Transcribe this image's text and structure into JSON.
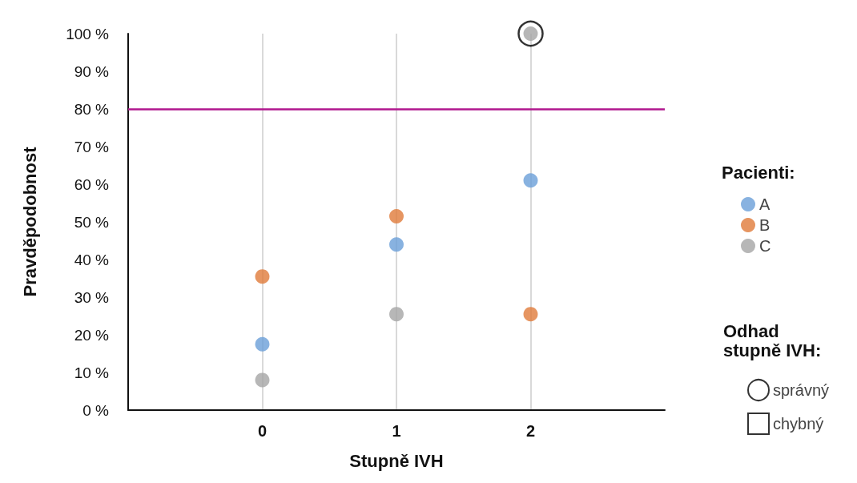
{
  "chart_data": {
    "type": "scatter",
    "xlabel": "Stupně IVH",
    "ylabel": "Pravděpodobnost",
    "legend_title": "Pacienti:",
    "annotations": [
      "Odhad\nstupně IVH:"
    ],
    "xlim": [
      -1,
      3
    ],
    "xticks": [
      0,
      1,
      2
    ],
    "ylim": [
      0,
      100
    ],
    "yticks": [
      {
        "value": 0,
        "label": "0 %"
      },
      {
        "value": 10,
        "label": "10 %"
      },
      {
        "value": 20,
        "label": "20 %"
      },
      {
        "value": 30,
        "label": "30 %"
      },
      {
        "value": 40,
        "label": "40 %"
      },
      {
        "value": 50,
        "label": "50 %"
      },
      {
        "value": 60,
        "label": "60 %"
      },
      {
        "value": 70,
        "label": "70 %"
      },
      {
        "value": 80,
        "label": "80 %"
      },
      {
        "value": 90,
        "label": "90 %"
      },
      {
        "value": 100,
        "label": "100 %"
      }
    ],
    "grid": "x",
    "legend": "right",
    "marker": "circle",
    "ref_lines": [
      {
        "axis": "y",
        "value": 80,
        "color": "#b0178e",
        "line_style": "solid"
      }
    ],
    "series": [
      {
        "name": "A",
        "color": "#6a9fd8",
        "x": [
          0,
          1,
          2
        ],
        "values": [
          17.5,
          44,
          61
        ]
      },
      {
        "name": "B",
        "color": "#e07b39",
        "x": [
          0,
          1,
          2
        ],
        "values": [
          35.5,
          51.5,
          25.5
        ]
      },
      {
        "name": "C",
        "color": "#a5a5a5",
        "x": [
          0,
          1,
          2
        ],
        "values": [
          8,
          25.5,
          100
        ]
      },
      {
        "name": "správný",
        "color": "#000000",
        "marker": "circle",
        "x": [
          2
        ],
        "values": [
          100
        ]
      },
      {
        "name": "chybný",
        "color": "#000000",
        "marker": "square"
      }
    ]
  }
}
